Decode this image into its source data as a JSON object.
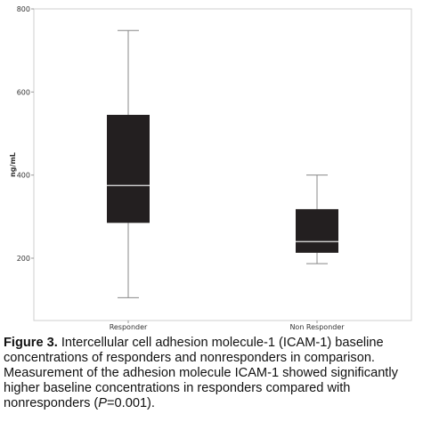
{
  "chart_data": {
    "type": "box",
    "ylabel": "ng/mL",
    "ylim": [
      50,
      800
    ],
    "yticks": [
      200,
      400,
      600,
      800
    ],
    "categories": [
      "Responder",
      "Non Responder"
    ],
    "boxes": [
      {
        "category": "Responder",
        "whisker_low": 105,
        "q1": 285,
        "median": 375,
        "q3": 545,
        "whisker_high": 748
      },
      {
        "category": "Non Responder",
        "whisker_low": 187,
        "q1": 213,
        "median": 240,
        "q3": 318,
        "whisker_high": 400
      }
    ],
    "box_color": "#231f20",
    "median_color": "#c8c8c8",
    "whisker_color": "#888888",
    "grid": false
  },
  "caption": {
    "label": "Figure 3.",
    "text_before_p": " Intercellular cell adhesion molecule-1 (ICAM-1) baseline concentrations of responders and nonresponders in comparison. Measurement of the adhesion molecule ICAM-1 showed significantly higher baseline concentrations in responders compared with nonresponders (",
    "p_symbol": "P",
    "text_after_p": "=0.001)."
  }
}
